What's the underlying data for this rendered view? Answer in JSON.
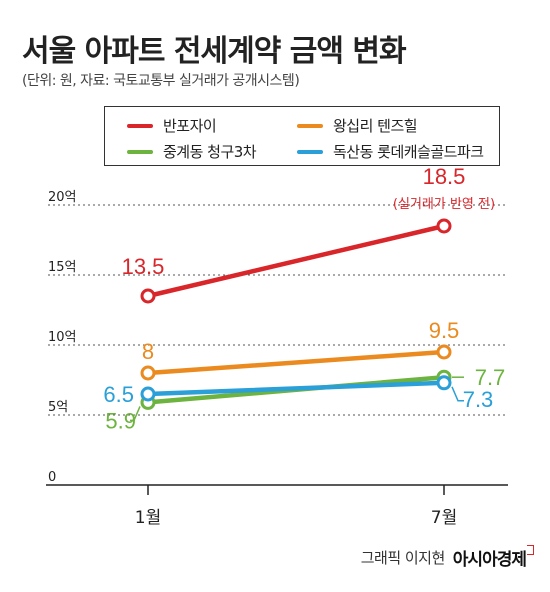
{
  "title": "서울 아파트 전세계약 금액 변화",
  "subtitle": "(단위: 원, 자료: 국토교통부 실거래가 공개시스템)",
  "credit": {
    "author": "그래픽 이지현",
    "brand": "아시아경제"
  },
  "colors": {
    "banpo": "#d8262a",
    "wangsimni": "#ea8a1f",
    "junggye": "#6db33f",
    "doksan": "#2a9fd8",
    "axis": "#222222",
    "grid": "#555555"
  },
  "chart_data": {
    "type": "line",
    "title": "서울 아파트 전세계약 금액 변화",
    "categories": [
      "1월",
      "7월"
    ],
    "ylim": [
      0,
      20
    ],
    "yticks": [
      0,
      5,
      10,
      15,
      20
    ],
    "ytick_labels": [
      "0",
      "5억",
      "10억",
      "15억",
      "20억"
    ],
    "grid": "dotted horizontal",
    "legend": "top",
    "series": [
      {
        "name": "반포자이",
        "key": "banpo",
        "values": [
          13.5,
          18.5
        ],
        "labels": [
          "13.5",
          "18.5"
        ],
        "annotation": "(실거래가 반영 전)"
      },
      {
        "name": "왕십리 텐즈힐",
        "key": "wangsimni",
        "values": [
          8,
          9.5
        ],
        "labels": [
          "8",
          "9.5"
        ]
      },
      {
        "name": "중계동 청구3차",
        "key": "junggye",
        "values": [
          5.9,
          7.7
        ],
        "labels": [
          "5.9",
          "7.7"
        ]
      },
      {
        "name": "독산동 롯데캐슬골드파크",
        "key": "doksan",
        "values": [
          6.5,
          7.3
        ],
        "labels": [
          "6.5",
          "7.3"
        ]
      }
    ]
  }
}
